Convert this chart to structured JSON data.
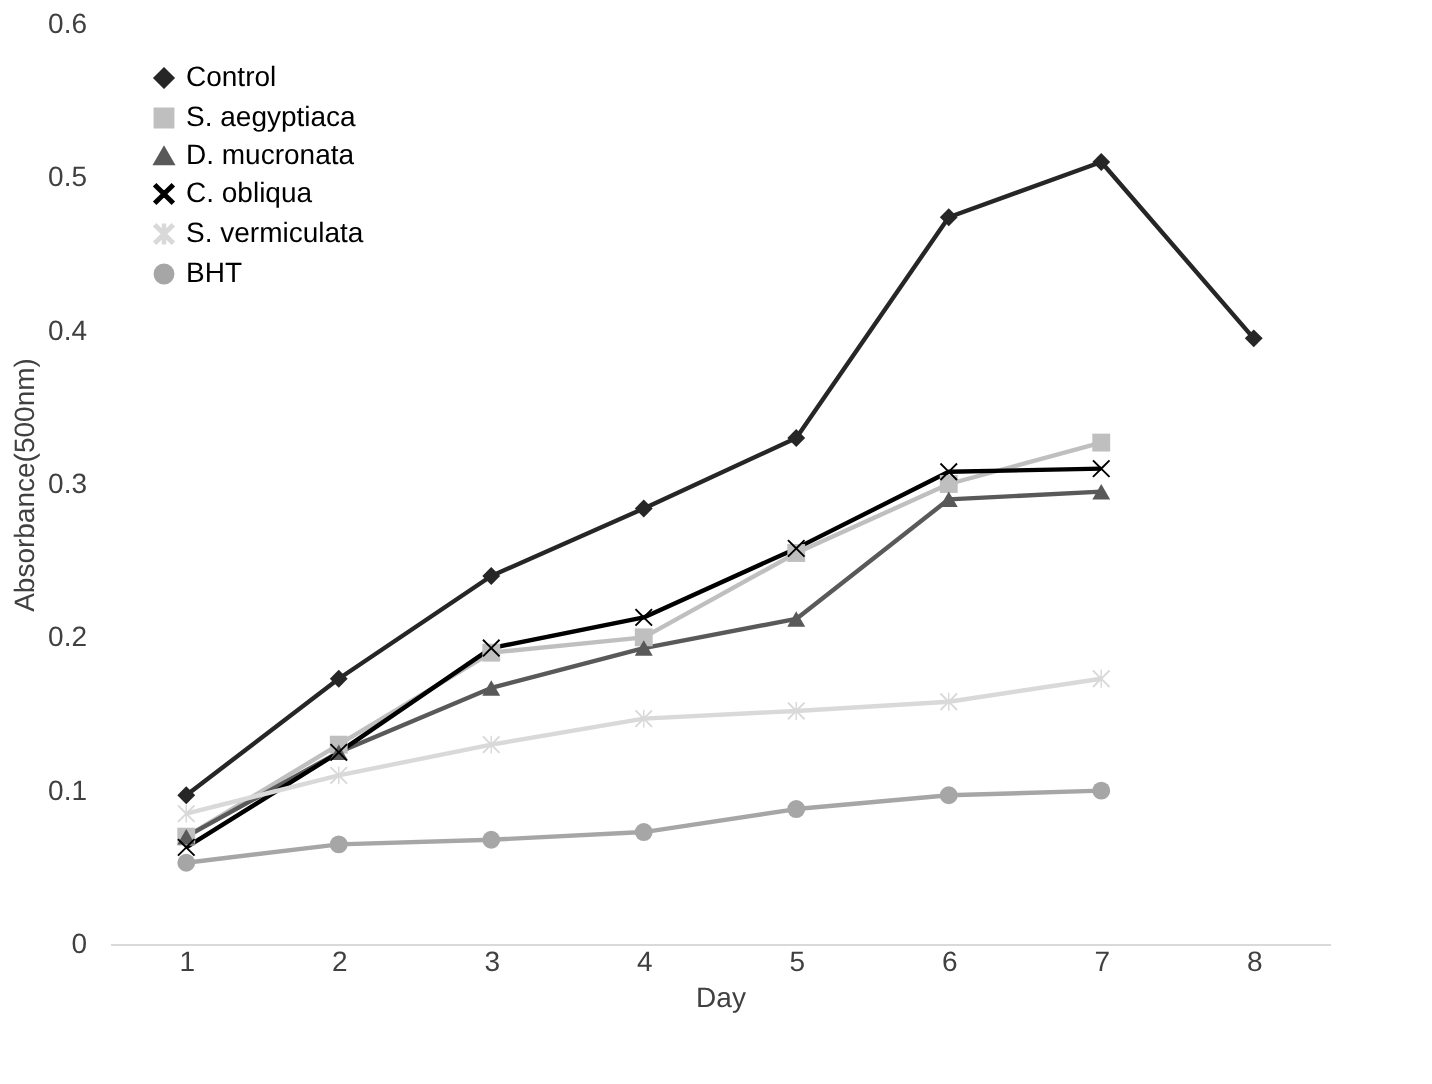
{
  "chart_data": {
    "type": "line",
    "xlabel": "Day",
    "ylabel": "Absorbance(500nm)",
    "categories": [
      "1",
      "2",
      "3",
      "4",
      "5",
      "6",
      "7",
      "8"
    ],
    "ylim": [
      0,
      0.6
    ],
    "yticks": [
      0,
      0.1,
      0.2,
      0.3,
      0.4,
      0.5,
      0.6
    ],
    "grid": false,
    "legend": "top left",
    "series": [
      {
        "name": "Control",
        "color": "#262626",
        "marker": "diamond",
        "values": [
          0.097,
          0.173,
          0.24,
          0.284,
          0.33,
          0.474,
          0.51,
          0.395
        ]
      },
      {
        "name": "S. aegyptiaca",
        "color": "#bfbfbf",
        "marker": "square",
        "values": [
          0.07,
          0.13,
          0.19,
          0.2,
          0.255,
          0.3,
          0.327,
          null
        ]
      },
      {
        "name": "D. mucronata",
        "color": "#595959",
        "marker": "triangle",
        "values": [
          0.07,
          0.125,
          0.167,
          0.193,
          0.212,
          0.29,
          0.295,
          null
        ]
      },
      {
        "name": "C. obliqua",
        "color": "#000000",
        "marker": "cross",
        "values": [
          0.063,
          0.125,
          0.193,
          0.213,
          0.258,
          0.308,
          0.31,
          null
        ]
      },
      {
        "name": "S. vermiculata",
        "color": "#d9d9d9",
        "marker": "star",
        "values": [
          0.085,
          0.11,
          0.13,
          0.147,
          0.152,
          0.158,
          0.173,
          null
        ]
      },
      {
        "name": "BHT",
        "color": "#a6a6a6",
        "marker": "circle",
        "values": [
          0.053,
          0.065,
          0.068,
          0.073,
          0.088,
          0.097,
          0.1,
          null
        ]
      }
    ]
  }
}
